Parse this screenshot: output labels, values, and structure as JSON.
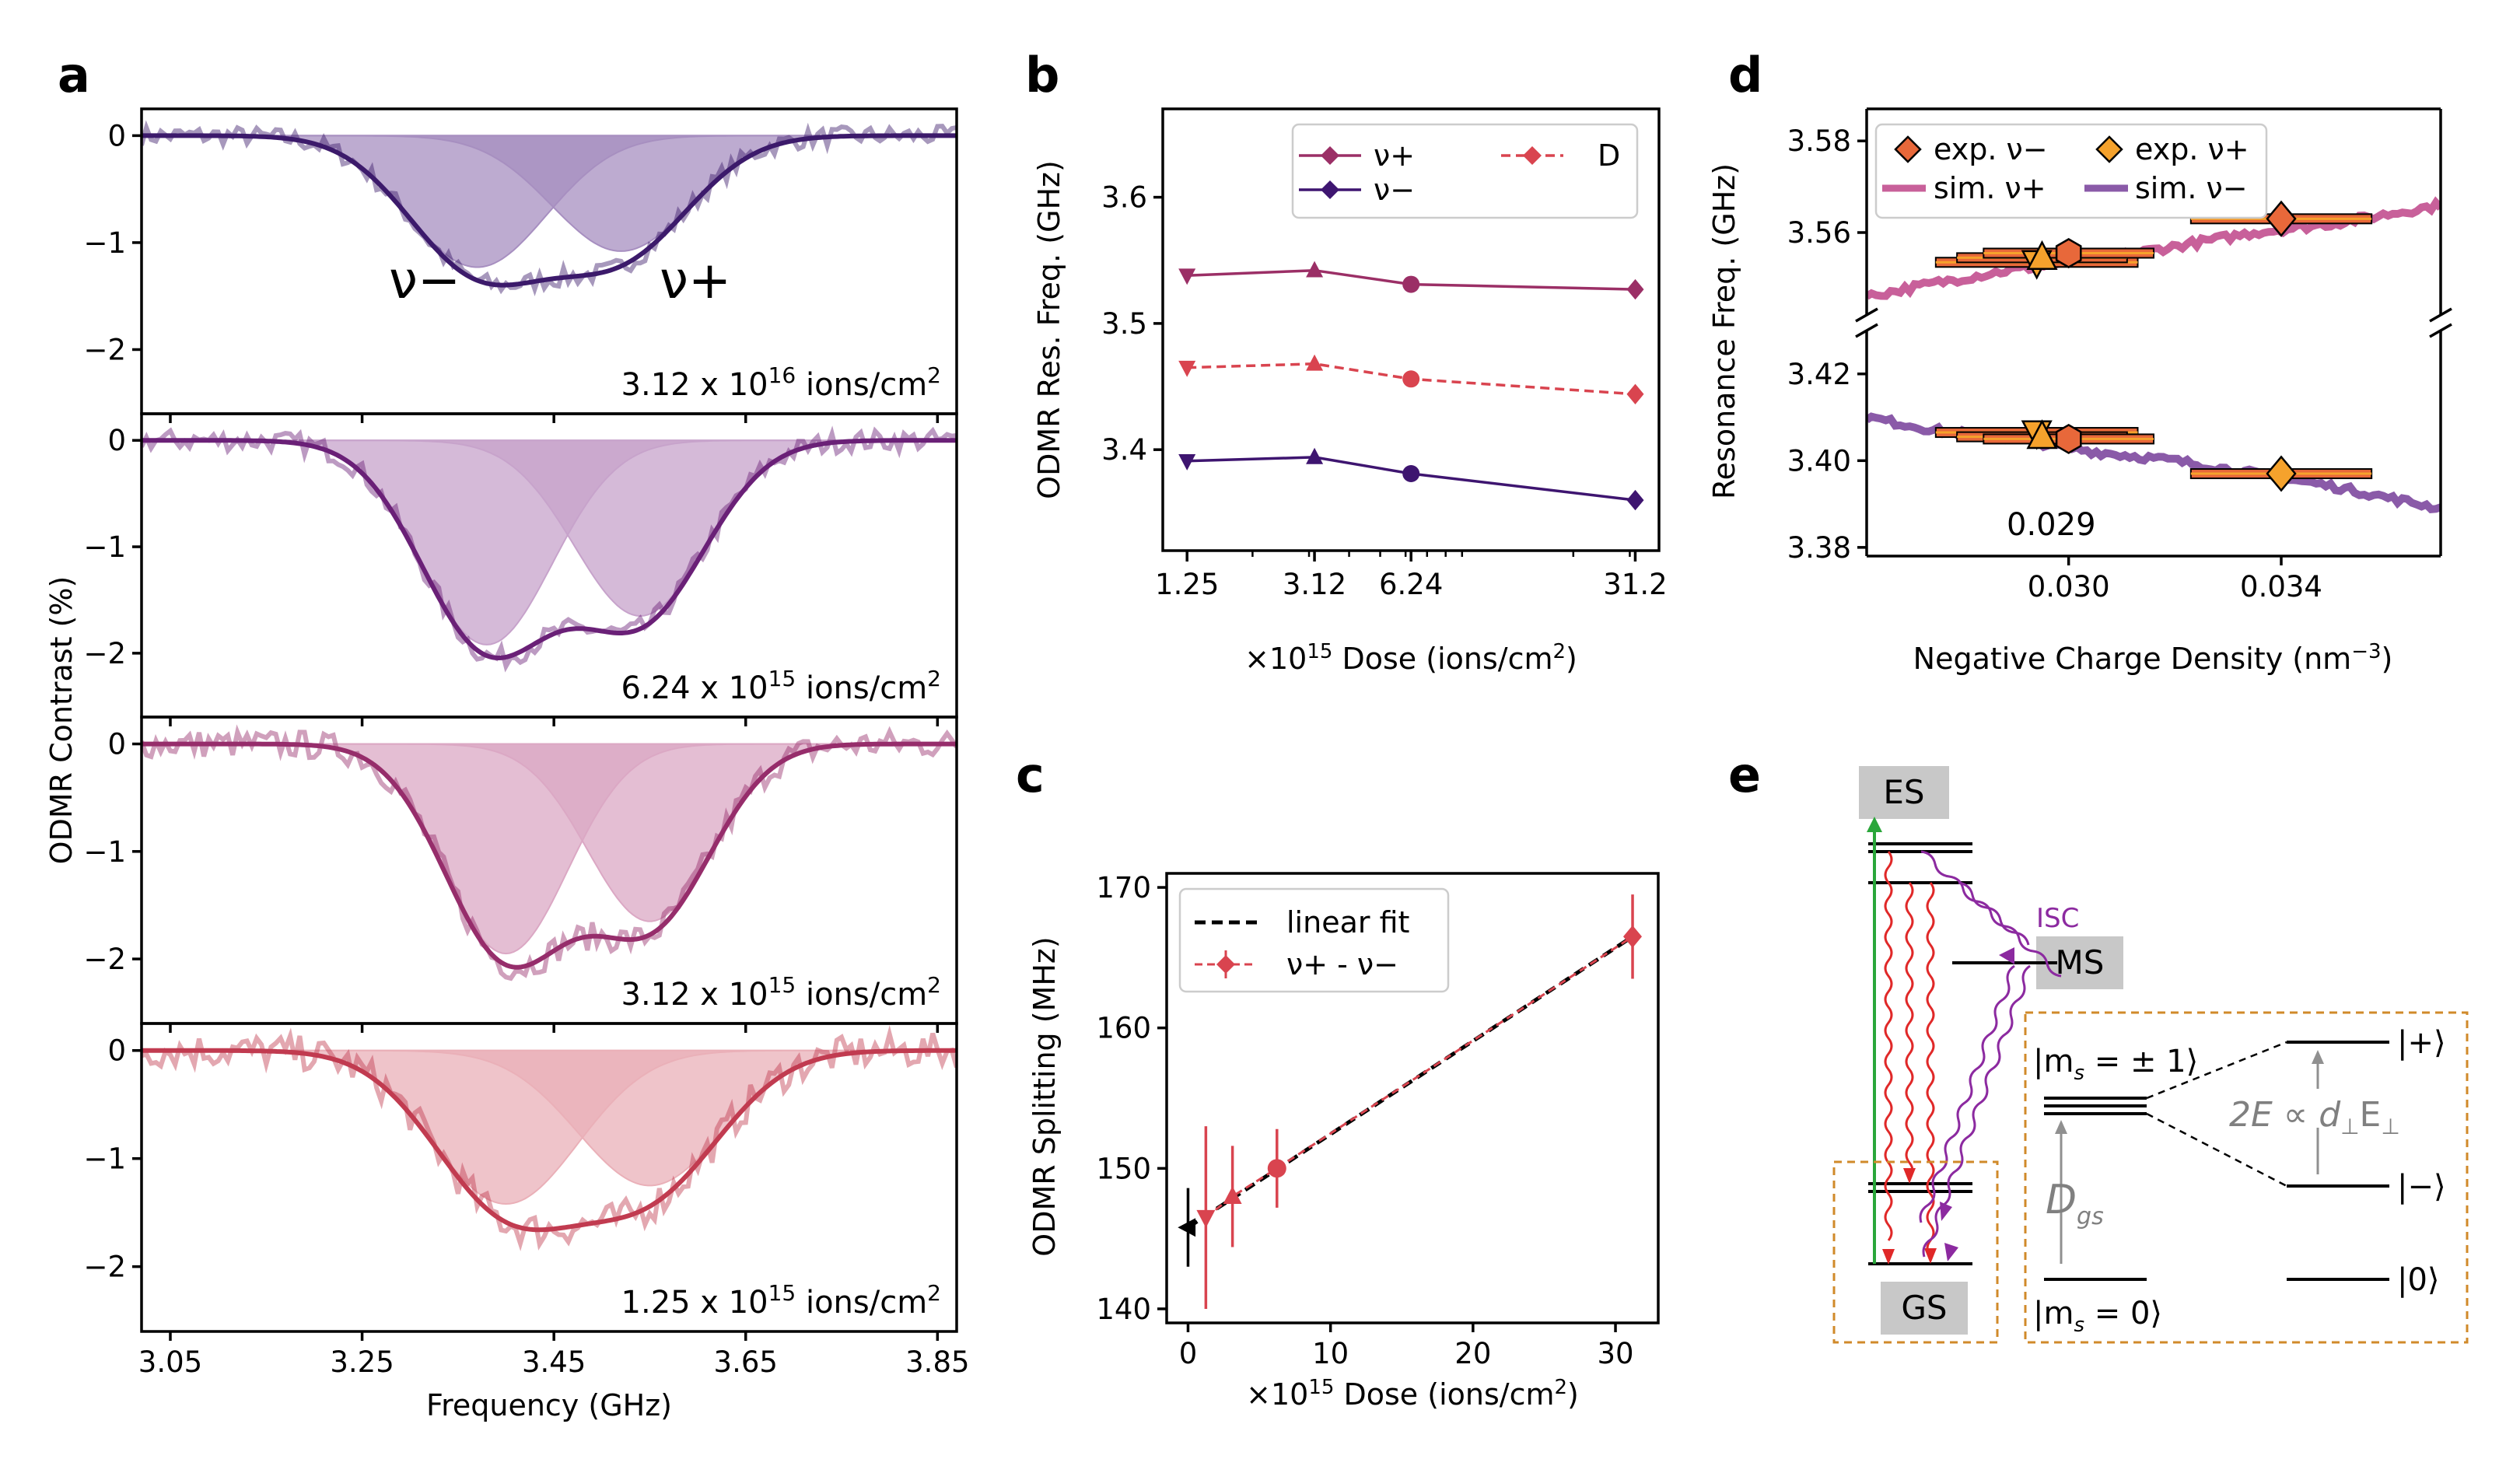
{
  "panel_labels": [
    "a",
    "b",
    "c",
    "d",
    "e"
  ],
  "chart_data": [
    {
      "id": "a",
      "type": "line",
      "xlabel": "Frequency (GHz)",
      "ylabel": "ODMR Contrast (%)",
      "xlim": [
        3.02,
        3.87
      ],
      "ylim": [
        -2.6,
        0.25
      ],
      "xticks": [
        3.05,
        3.25,
        3.45,
        3.65,
        3.85
      ],
      "xtick_labels": [
        "3.05",
        "3.25",
        "3.45",
        "3.65",
        "3.85"
      ],
      "yticks": [
        0,
        -1,
        -2
      ],
      "ytick_labels": [
        "0",
        "−1",
        "−2"
      ],
      "peak_labels": [
        "ν−",
        "ν+"
      ],
      "subplots": [
        {
          "dose_label": "3.12 x 10",
          "dose_exp": "16",
          "dose_unit": " ions/cm",
          "unit_exp": "2",
          "nu_minus": 3.37,
          "nu_plus": 3.52,
          "depth_minus": 1.23,
          "depth_plus": 1.08,
          "sigma": 0.072,
          "color": "#3c1a6b",
          "fill": "#a78fc0",
          "noise": 0.09
        },
        {
          "dose_label": "6.24 x 10",
          "dose_exp": "15",
          "dose_unit": " ions/cm",
          "unit_exp": "2",
          "nu_minus": 3.38,
          "nu_plus": 3.54,
          "depth_minus": 1.92,
          "depth_plus": 1.65,
          "sigma": 0.068,
          "color": "#6a2077",
          "fill": "#c7a3cb",
          "noise": 0.1
        },
        {
          "dose_label": "3.12 x 10",
          "dose_exp": "15",
          "dose_unit": " ions/cm",
          "unit_exp": "2",
          "nu_minus": 3.4,
          "nu_plus": 3.55,
          "depth_minus": 1.95,
          "depth_plus": 1.65,
          "sigma": 0.064,
          "color": "#962d6b",
          "fill": "#dba8c4",
          "noise": 0.13
        },
        {
          "dose_label": "1.25 x 10",
          "dose_exp": "15",
          "dose_unit": " ions/cm",
          "unit_exp": "2",
          "nu_minus": 3.4,
          "nu_plus": 3.55,
          "depth_minus": 1.42,
          "depth_plus": 1.25,
          "sigma": 0.075,
          "color": "#c13b50",
          "fill": "#eab0b8",
          "noise": 0.16
        }
      ]
    },
    {
      "id": "b",
      "type": "line",
      "ylabel": "ODMR Res. Freq. (GHz)",
      "xlabel_prefix": "×10",
      "xlabel_exp": "15",
      "xlabel_rest": " Dose (ions/cm",
      "xlabel_exp2": "2",
      "xlabel_end": ")",
      "xscale": "log",
      "xlim": [
        1.05,
        37
      ],
      "ylim": [
        3.32,
        3.67
      ],
      "x": [
        1.25,
        3.12,
        6.24,
        31.2
      ],
      "xtick_labels": [
        "1.25",
        "3.12",
        "6.24",
        "31.2"
      ],
      "yticks": [
        3.4,
        3.5,
        3.6
      ],
      "ytick_labels": [
        "3.4",
        "3.5",
        "3.6"
      ],
      "series": [
        {
          "name": "ν+",
          "values": [
            3.538,
            3.542,
            3.531,
            3.527
          ],
          "color": "#9b2f66",
          "dash": false
        },
        {
          "name": "ν−",
          "values": [
            3.391,
            3.394,
            3.381,
            3.36
          ],
          "color": "#3e1570",
          "dash": false
        },
        {
          "name": "D",
          "values": [
            3.465,
            3.468,
            3.456,
            3.444
          ],
          "color": "#d9444f",
          "dash": true
        }
      ],
      "legend": [
        "ν+",
        "ν−",
        "D"
      ],
      "legend_position": "top-right"
    },
    {
      "id": "c",
      "type": "scatter",
      "ylabel": "ODMR Splitting (MHz)",
      "xlabel_prefix": "×10",
      "xlabel_exp": "15",
      "xlabel_rest": " Dose (ions/cm",
      "xlabel_exp2": "2",
      "xlabel_end": ")",
      "xlim": [
        -1.5,
        33
      ],
      "ylim": [
        139,
        171
      ],
      "xticks": [
        0,
        10,
        20,
        30
      ],
      "xtick_labels": [
        "0",
        "10",
        "20",
        "30"
      ],
      "yticks": [
        140,
        150,
        160,
        170
      ],
      "ytick_labels": [
        "140",
        "150",
        "160",
        "170"
      ],
      "points": [
        {
          "x": 0,
          "y": 145.8,
          "err": 2.8,
          "color": "#000000",
          "marker": "triangle-left"
        },
        {
          "x": 1.25,
          "y": 146.5,
          "err": 6.5,
          "color": "#d9444f",
          "marker": "triangle-down"
        },
        {
          "x": 3.12,
          "y": 148.0,
          "err": 3.6,
          "color": "#d9444f",
          "marker": "triangle-up"
        },
        {
          "x": 6.24,
          "y": 150.0,
          "err": 2.8,
          "color": "#d9444f",
          "marker": "circle"
        },
        {
          "x": 31.2,
          "y": 166.5,
          "err": 3.0,
          "color": "#d9444f",
          "marker": "diamond"
        }
      ],
      "fit": {
        "x": [
          0,
          31.2
        ],
        "y": [
          145.8,
          166.5
        ]
      },
      "legend": [
        "linear fit",
        "ν+ - ν−"
      ],
      "legend_position": "top-left"
    },
    {
      "id": "d",
      "type": "scatter",
      "xlabel": "Negative Charge Density (nm",
      "xlabel_exp": "−3",
      "xlabel_end": ")",
      "ylabel": "Resonance Freq. (GHz)",
      "xlim": [
        0.0262,
        0.037
      ],
      "ylim_upper": [
        3.542,
        3.587
      ],
      "ylim_lower": [
        3.378,
        3.43
      ],
      "broken_axis": true,
      "xticks": [
        0.03,
        0.034
      ],
      "xtick_labels": [
        "0.030",
        "0.034"
      ],
      "yticks_upper": [
        3.56,
        3.58
      ],
      "ytick_labels_upper": [
        "3.56",
        "3.58"
      ],
      "yticks_lower": [
        3.38,
        3.4,
        3.42
      ],
      "ytick_labels_lower": [
        "3.38",
        "3.40",
        "3.42"
      ],
      "annotation": "0.029",
      "exp_nu_plus": [
        {
          "x": 0.0294,
          "y": 3.5535,
          "xerr": 0.0019,
          "marker": "triangle-down"
        },
        {
          "x": 0.0295,
          "y": 3.5545,
          "xerr": 0.0016,
          "marker": "triangle-up"
        },
        {
          "x": 0.03,
          "y": 3.5555,
          "xerr": 0.0016,
          "marker": "hexagon"
        },
        {
          "x": 0.034,
          "y": 3.563,
          "xerr": 0.0017,
          "marker": "diamond"
        }
      ],
      "exp_nu_minus": [
        {
          "x": 0.0294,
          "y": 3.4065,
          "xerr": 0.0019,
          "marker": "triangle-down"
        },
        {
          "x": 0.0295,
          "y": 3.4055,
          "xerr": 0.0016,
          "marker": "triangle-up"
        },
        {
          "x": 0.03,
          "y": 3.405,
          "xerr": 0.0016,
          "marker": "hexagon"
        },
        {
          "x": 0.034,
          "y": 3.397,
          "xerr": 0.0017,
          "marker": "diamond"
        }
      ],
      "sim_nu_plus": {
        "x": [
          0.0262,
          0.0275,
          0.029,
          0.0305,
          0.032,
          0.0335,
          0.035,
          0.037
        ],
        "y": [
          3.546,
          3.549,
          3.552,
          3.554,
          3.557,
          3.56,
          3.562,
          3.566
        ]
      },
      "sim_nu_minus": {
        "x": [
          0.0262,
          0.0275,
          0.029,
          0.0305,
          0.032,
          0.0335,
          0.035,
          0.037
        ],
        "y": [
          3.41,
          3.407,
          3.405,
          3.402,
          3.4,
          3.397,
          3.394,
          3.389
        ]
      },
      "colors": {
        "exp_nu_minus": "#e8683a",
        "exp_nu_plus": "#f5a22c",
        "sim_nu_plus": "#c8609a",
        "sim_nu_minus": "#8a5aa8"
      },
      "legend": [
        "exp. ν−",
        "exp. ν+",
        "sim. ν+",
        "sim. ν−"
      ],
      "legend_position": "top"
    }
  ],
  "diagram_e": {
    "ES": "ES",
    "GS": "GS",
    "MS": "MS",
    "ISC": "ISC",
    "ket_ms_pm1": "|m",
    "ket_ms_pm1_rest": " = ± 1⟩",
    "ket_ms_0": "|m",
    "ket_ms_0_rest": " = 0⟩",
    "sub_s": "s",
    "Dgs": "D",
    "Dgs_sub": "gs",
    "two_E": "2E ∝ d",
    "two_E_mid": "⊥",
    "two_E_E": "E",
    "two_E_end": "⊥",
    "ket_plus": "|+⟩",
    "ket_minus": "|−⟩",
    "ket_zero": "|0⟩"
  }
}
